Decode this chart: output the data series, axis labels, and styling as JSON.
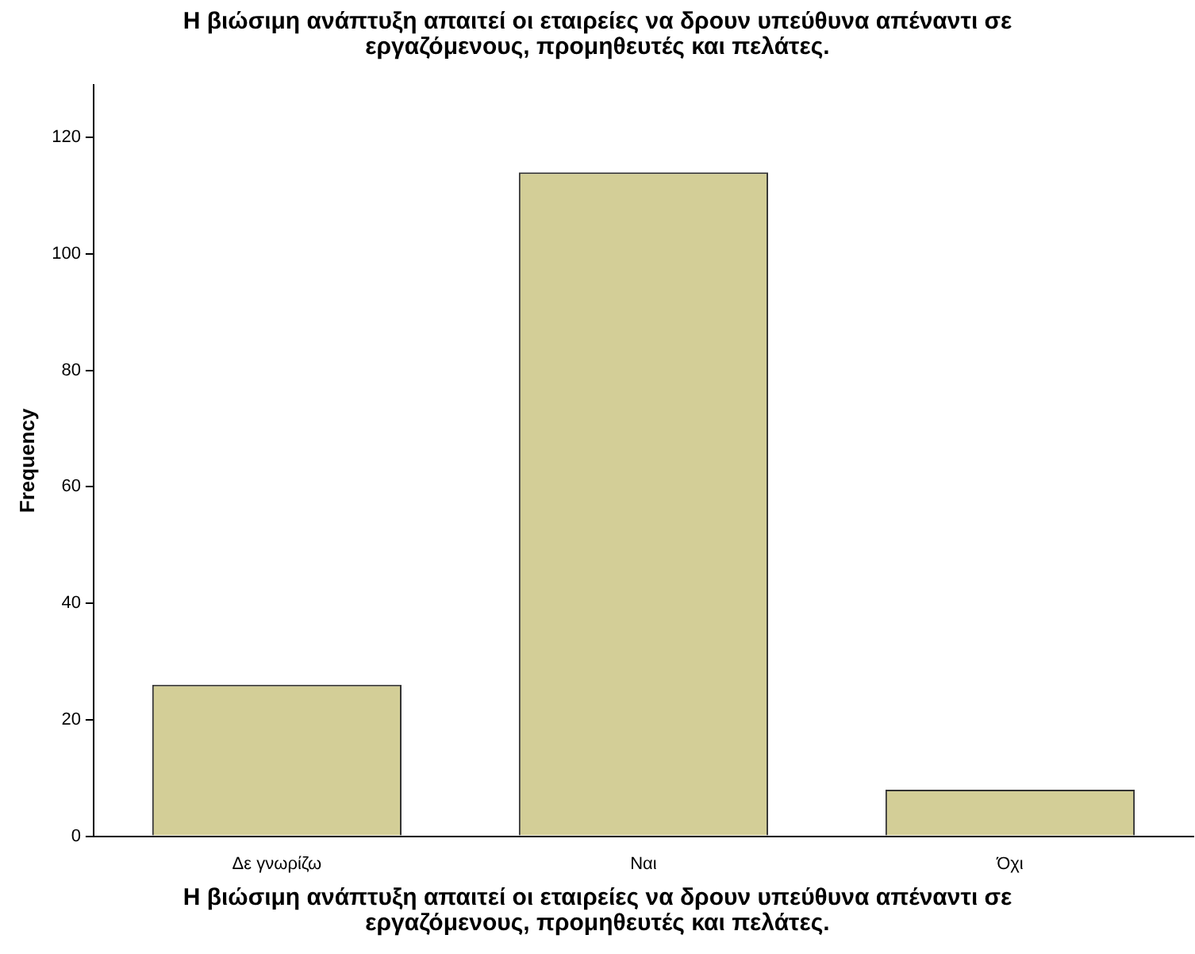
{
  "chart_data": {
    "type": "bar",
    "title": "Η βιώσιμη ανάπτυξη απαιτεί οι εταιρείες να δρουν υπεύθυνα απέναντι σε εργαζόμενους, προμηθευτές και πελάτες.",
    "xlabel": "Η βιώσιμη ανάπτυξη απαιτεί οι εταιρείες να δρουν υπεύθυνα απέναντι σε εργαζόμενους, προμηθευτές και πελάτες.",
    "ylabel": "Frequency",
    "categories": [
      "Δε γνωρίζω",
      "Ναι",
      "Όχι"
    ],
    "values": [
      26,
      114,
      8
    ],
    "color": "#d3ce97",
    "ylim": [
      0,
      129
    ],
    "yticks": [
      0,
      20,
      40,
      60,
      80,
      100,
      120
    ],
    "grid": false,
    "legend": false
  }
}
